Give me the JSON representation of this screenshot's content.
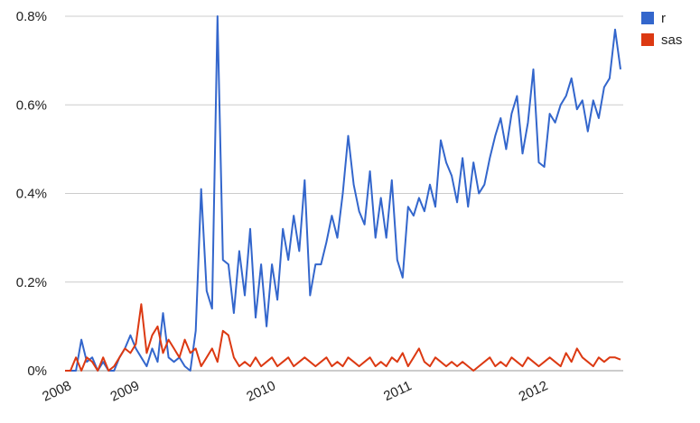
{
  "chart_data": {
    "type": "line",
    "x": [
      2008.5,
      2008.54,
      2008.58,
      2008.62,
      2008.66,
      2008.7,
      2008.74,
      2008.78,
      2008.82,
      2008.86,
      2008.9,
      2008.94,
      2008.98,
      2009.02,
      2009.06,
      2009.1,
      2009.14,
      2009.18,
      2009.22,
      2009.26,
      2009.3,
      2009.34,
      2009.38,
      2009.42,
      2009.46,
      2009.5,
      2009.54,
      2009.58,
      2009.62,
      2009.66,
      2009.7,
      2009.74,
      2009.78,
      2009.82,
      2009.86,
      2009.9,
      2009.94,
      2009.98,
      2010.02,
      2010.06,
      2010.1,
      2010.14,
      2010.18,
      2010.22,
      2010.26,
      2010.3,
      2010.34,
      2010.38,
      2010.42,
      2010.46,
      2010.5,
      2010.54,
      2010.58,
      2010.62,
      2010.66,
      2010.7,
      2010.74,
      2010.78,
      2010.82,
      2010.86,
      2010.9,
      2010.94,
      2010.98,
      2011.02,
      2011.06,
      2011.1,
      2011.14,
      2011.18,
      2011.22,
      2011.26,
      2011.3,
      2011.34,
      2011.38,
      2011.42,
      2011.46,
      2011.5,
      2011.54,
      2011.58,
      2011.62,
      2011.66,
      2011.7,
      2011.74,
      2011.78,
      2011.82,
      2011.86,
      2011.9,
      2011.94,
      2011.98,
      2012.02,
      2012.06,
      2012.1,
      2012.14,
      2012.18,
      2012.22,
      2012.26,
      2012.3,
      2012.34,
      2012.38,
      2012.42,
      2012.46,
      2012.5,
      2012.54,
      2012.58
    ],
    "series": [
      {
        "name": "r",
        "color": "#3366cc",
        "values": [
          0,
          0,
          0,
          0.07,
          0.02,
          0.03,
          0,
          0.02,
          0,
          0,
          0.03,
          0.05,
          0.08,
          0.05,
          0.03,
          0.01,
          0.05,
          0.02,
          0.13,
          0.03,
          0.02,
          0.03,
          0.01,
          0,
          0.09,
          0.41,
          0.18,
          0.14,
          0.8,
          0.25,
          0.24,
          0.13,
          0.27,
          0.17,
          0.32,
          0.12,
          0.24,
          0.1,
          0.24,
          0.16,
          0.32,
          0.25,
          0.35,
          0.27,
          0.43,
          0.17,
          0.24,
          0.24,
          0.29,
          0.35,
          0.3,
          0.4,
          0.53,
          0.42,
          0.36,
          0.33,
          0.45,
          0.3,
          0.39,
          0.3,
          0.43,
          0.25,
          0.21,
          0.37,
          0.35,
          0.39,
          0.36,
          0.42,
          0.37,
          0.52,
          0.47,
          0.44,
          0.38,
          0.48,
          0.37,
          0.47,
          0.4,
          0.42,
          0.48,
          0.53,
          0.57,
          0.5,
          0.58,
          0.62,
          0.49,
          0.56,
          0.68,
          0.47,
          0.46,
          0.58,
          0.56,
          0.6,
          0.62,
          0.66,
          0.59,
          0.61,
          0.54,
          0.61,
          0.57,
          0.64,
          0.66,
          0.77,
          0.68
        ]
      },
      {
        "name": "sas",
        "color": "#dc3912",
        "values": [
          0,
          0,
          0.03,
          0,
          0.03,
          0.02,
          0,
          0.03,
          0,
          0.01,
          0.03,
          0.05,
          0.04,
          0.06,
          0.15,
          0.04,
          0.08,
          0.1,
          0.04,
          0.07,
          0.05,
          0.03,
          0.07,
          0.04,
          0.05,
          0.01,
          0.03,
          0.05,
          0.02,
          0.09,
          0.08,
          0.03,
          0.01,
          0.02,
          0.01,
          0.03,
          0.01,
          0.02,
          0.03,
          0.01,
          0.02,
          0.03,
          0.01,
          0.02,
          0.03,
          0.02,
          0.01,
          0.02,
          0.03,
          0.01,
          0.02,
          0.01,
          0.03,
          0.02,
          0.01,
          0.02,
          0.03,
          0.01,
          0.02,
          0.01,
          0.03,
          0.02,
          0.04,
          0.01,
          0.03,
          0.05,
          0.02,
          0.01,
          0.03,
          0.02,
          0.01,
          0.02,
          0.01,
          0.02,
          0.01,
          0,
          0.01,
          0.02,
          0.03,
          0.01,
          0.02,
          0.01,
          0.03,
          0.02,
          0.01,
          0.03,
          0.02,
          0.01,
          0.02,
          0.03,
          0.02,
          0.01,
          0.04,
          0.02,
          0.05,
          0.03,
          0.02,
          0.01,
          0.03,
          0.02,
          0.03,
          0.03,
          0.025
        ]
      }
    ],
    "xlim": [
      2008.5,
      2012.6
    ],
    "xticks": [
      {
        "value": 2008.5,
        "label": "2008"
      },
      2009,
      2010,
      2011,
      2012
    ],
    "ylim": [
      0,
      0.8
    ],
    "yticks": [
      {
        "value": 0,
        "label": "0%"
      },
      {
        "value": 0.2,
        "label": "0.2%"
      },
      {
        "value": 0.4,
        "label": "0.4%"
      },
      {
        "value": 0.6,
        "label": "0.6%"
      },
      {
        "value": 0.8,
        "label": "0.8%"
      }
    ],
    "grid": true,
    "legend": "top-right"
  }
}
